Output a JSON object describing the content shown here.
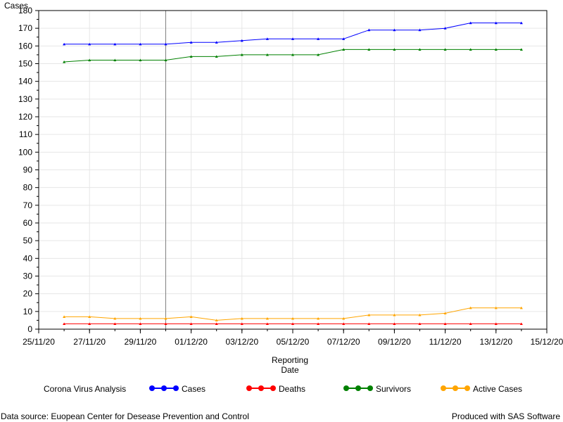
{
  "chart_data": {
    "type": "line",
    "ylabel": "Cases",
    "xlabel_lines": [
      "Reporting",
      "Date"
    ],
    "ylim": [
      0,
      180
    ],
    "yticks": [
      0,
      10,
      20,
      30,
      40,
      50,
      60,
      70,
      80,
      90,
      100,
      110,
      120,
      130,
      140,
      150,
      160,
      170,
      180
    ],
    "xlim": [
      "2020-11-25",
      "2020-12-15"
    ],
    "xticks": [
      "2020-11-25",
      "2020-11-27",
      "2020-11-29",
      "2020-12-01",
      "2020-12-03",
      "2020-12-05",
      "2020-12-07",
      "2020-12-09",
      "2020-12-11",
      "2020-12-13",
      "2020-12-15"
    ],
    "xtick_labels": [
      "25/11/20",
      "27/11/20",
      "29/11/20",
      "01/12/20",
      "03/12/20",
      "05/12/20",
      "07/12/20",
      "09/12/20",
      "11/12/20",
      "13/12/20",
      "15/12/20"
    ],
    "reference_line_x": "2020-11-30",
    "grid": true,
    "x": [
      "2020-11-26",
      "2020-11-27",
      "2020-11-28",
      "2020-11-29",
      "2020-11-30",
      "2020-12-01",
      "2020-12-02",
      "2020-12-03",
      "2020-12-04",
      "2020-12-05",
      "2020-12-06",
      "2020-12-07",
      "2020-12-08",
      "2020-12-09",
      "2020-12-10",
      "2020-12-11",
      "2020-12-12",
      "2020-12-13",
      "2020-12-14"
    ],
    "series": [
      {
        "name": "Cases",
        "color": "#0000ff",
        "values": [
          161,
          161,
          161,
          161,
          161,
          162,
          162,
          163,
          164,
          164,
          164,
          164,
          169,
          169,
          169,
          170,
          173,
          173,
          173
        ]
      },
      {
        "name": "Deaths",
        "color": "#ff0000",
        "values": [
          3,
          3,
          3,
          3,
          3,
          3,
          3,
          3,
          3,
          3,
          3,
          3,
          3,
          3,
          3,
          3,
          3,
          3,
          3
        ]
      },
      {
        "name": "Survivors",
        "color": "#008000",
        "values": [
          151,
          152,
          152,
          152,
          152,
          154,
          154,
          155,
          155,
          155,
          155,
          158,
          158,
          158,
          158,
          158,
          158,
          158,
          158
        ]
      },
      {
        "name": "Active Cases",
        "color": "#ffa500",
        "values": [
          7,
          7,
          6,
          6,
          6,
          7,
          5,
          6,
          6,
          6,
          6,
          6,
          8,
          8,
          8,
          9,
          12,
          12,
          12
        ]
      }
    ],
    "legend_title": "Corona Virus Analysis",
    "legend_position": "bottom"
  },
  "footer": {
    "source": "Data source: Euopean Center for Desease Prevention and Control",
    "credit": "Produced with SAS Software"
  }
}
